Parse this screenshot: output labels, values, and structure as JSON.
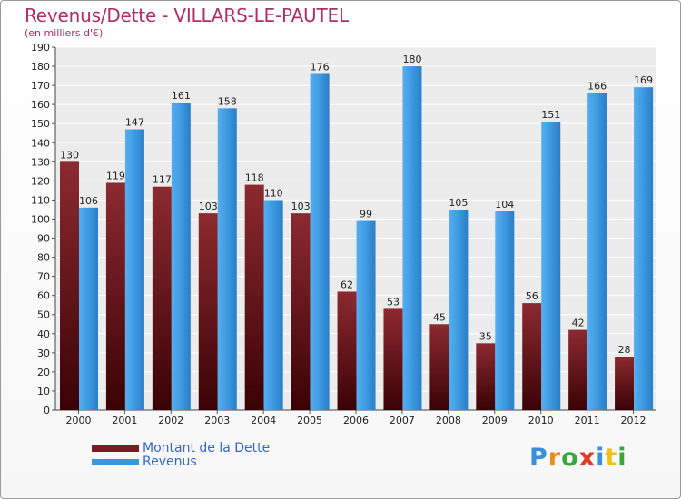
{
  "chart_data": {
    "type": "bar",
    "title": "Revenus/Dette - VILLARS-LE-PAUTEL",
    "subtitle": "(en milliers d'€)",
    "categories": [
      "2000",
      "2001",
      "2002",
      "2003",
      "2004",
      "2005",
      "2006",
      "2007",
      "2008",
      "2009",
      "2010",
      "2011",
      "2012"
    ],
    "series": [
      {
        "name": "Montant de la Dette",
        "color": "#7a1c22",
        "values": [
          130,
          119,
          117,
          103,
          118,
          103,
          62,
          53,
          45,
          35,
          56,
          42,
          28
        ]
      },
      {
        "name": "Revenus",
        "color": "#3c96dc",
        "values": [
          106,
          147,
          161,
          158,
          110,
          176,
          99,
          180,
          105,
          104,
          151,
          166,
          169
        ]
      }
    ],
    "ylim": [
      0,
      190
    ],
    "ytick_step": 10,
    "grid": true,
    "legend_position": "bottom-left"
  },
  "brand": {
    "letters": [
      "P",
      "r",
      "o",
      "x",
      "i",
      "t",
      "i"
    ],
    "colors": [
      "#3a8fd8",
      "#f08a1c",
      "#39a83a",
      "#e03a2a",
      "#3a8fd8",
      "#f0c020",
      "#39a83a"
    ]
  }
}
